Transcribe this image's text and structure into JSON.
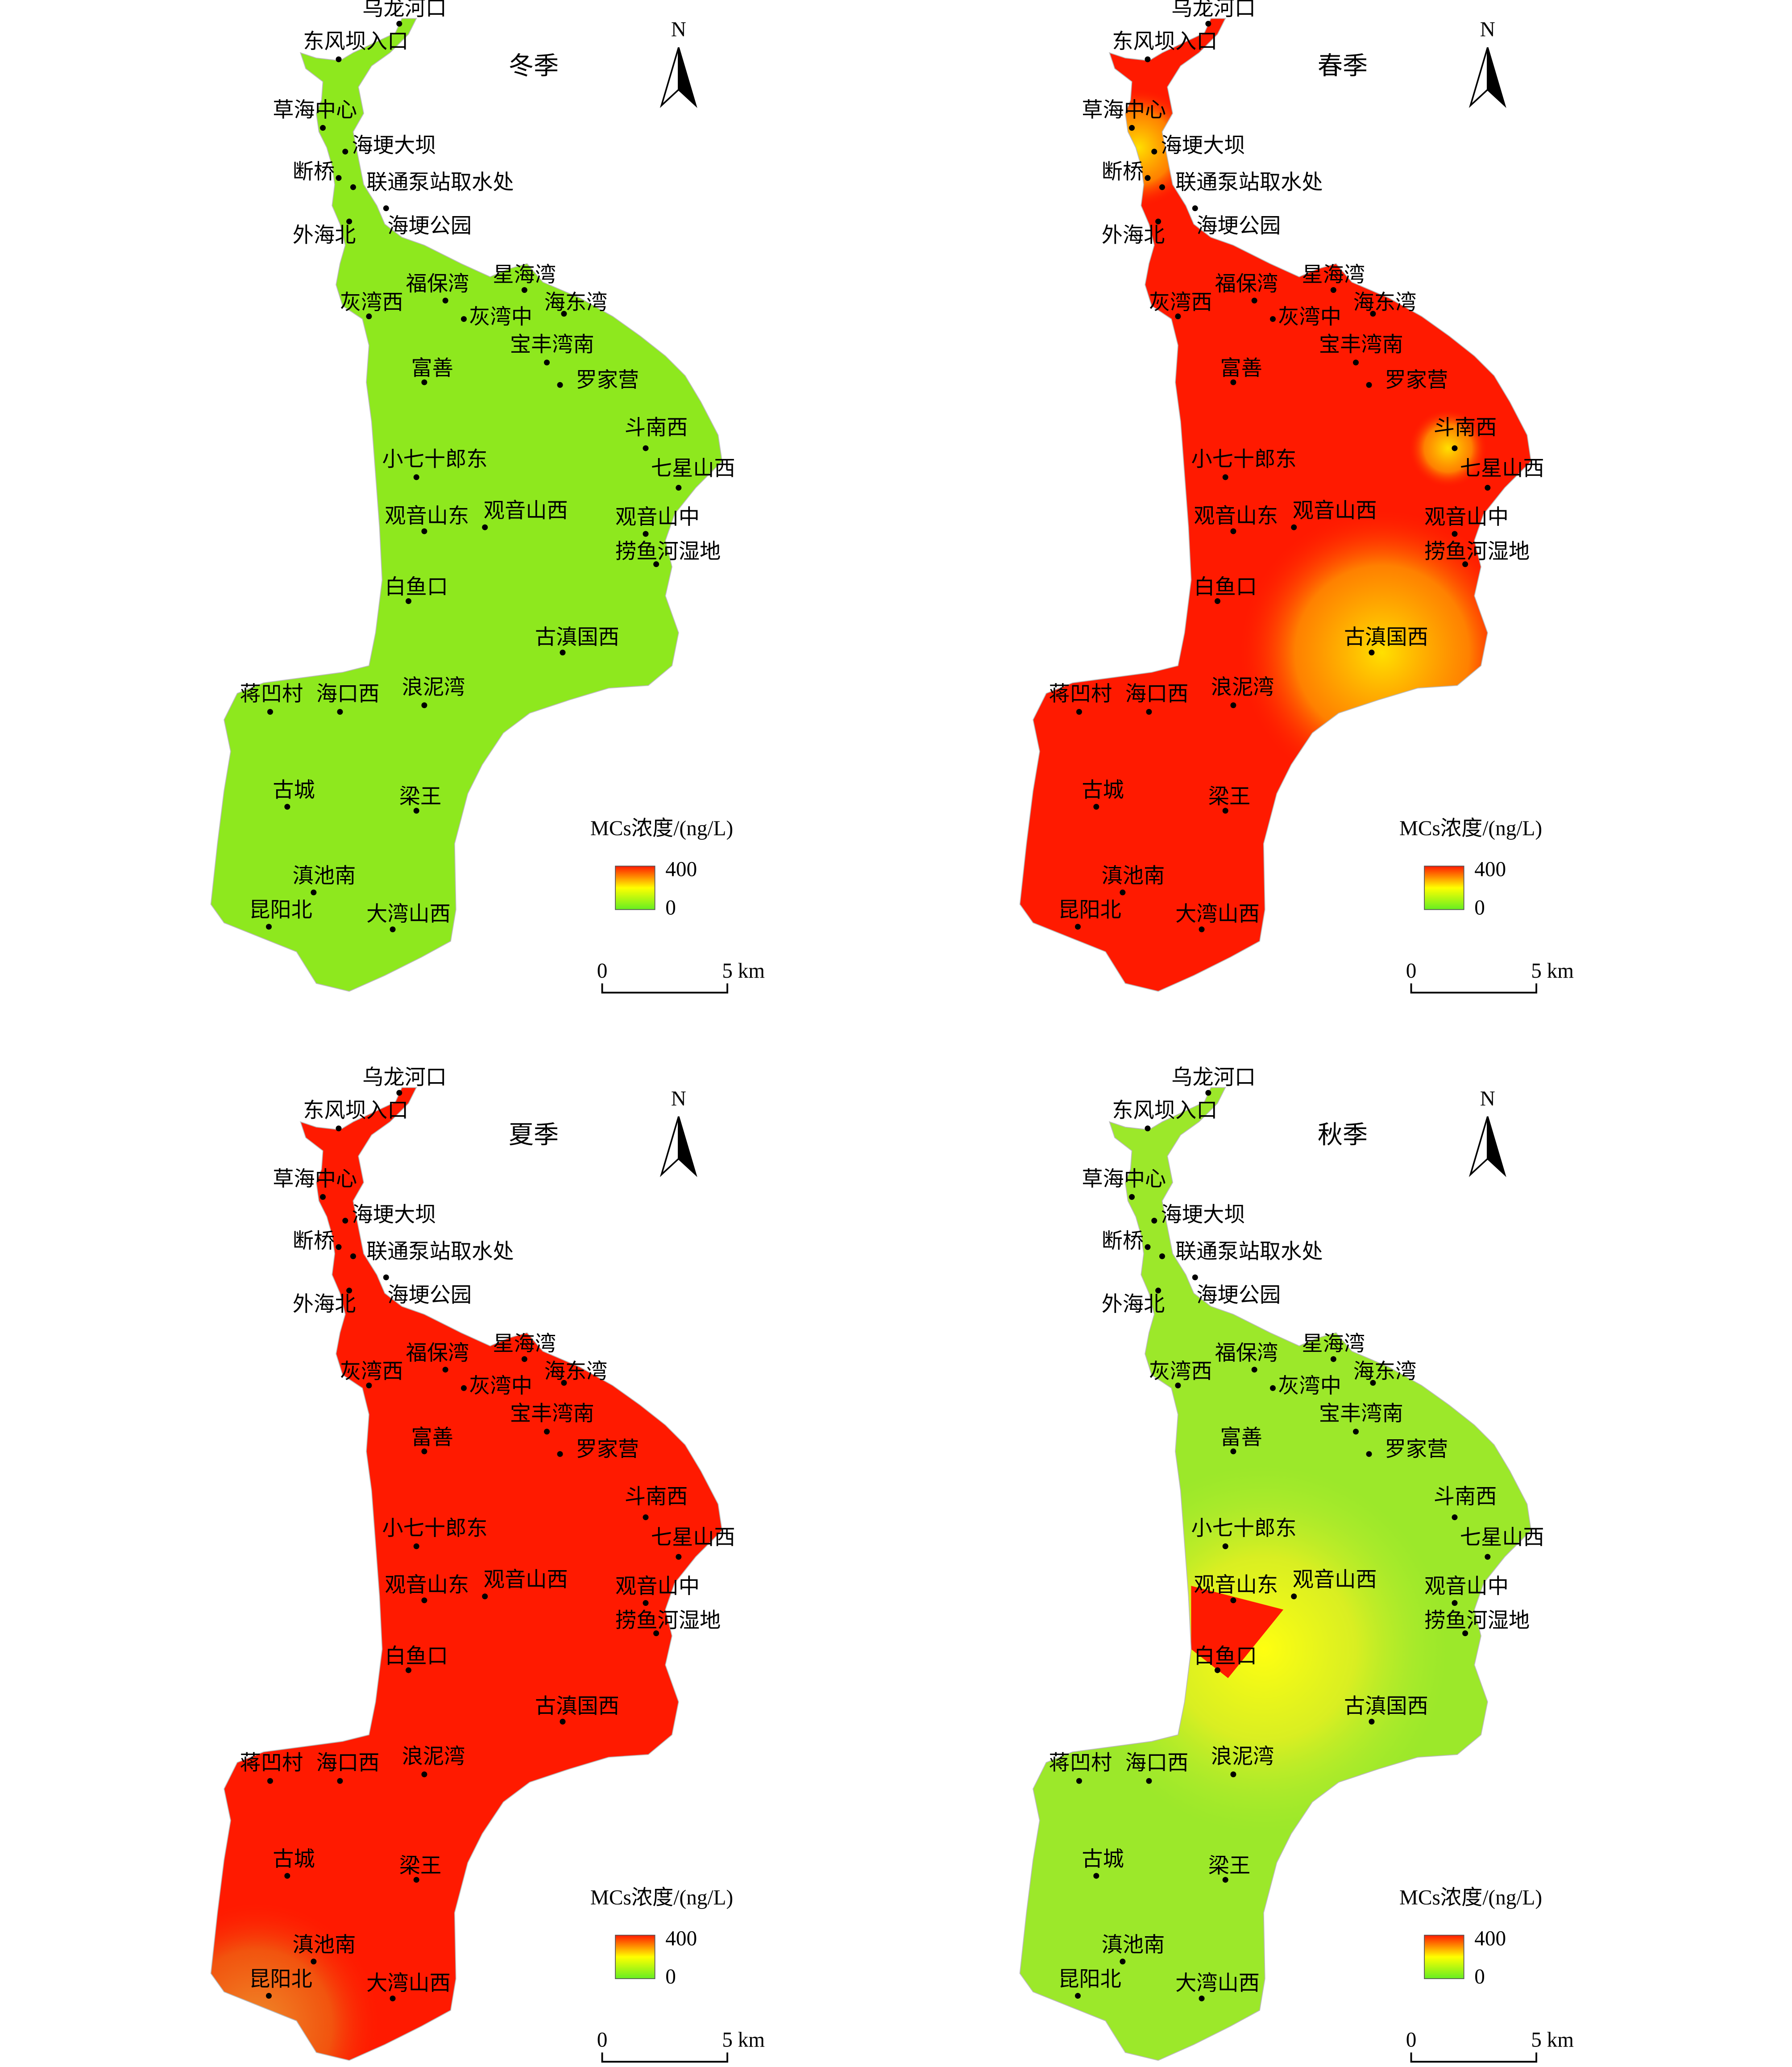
{
  "panels": [
    {
      "season": "冬季",
      "color": "#8ee81e"
    },
    {
      "season": "春季",
      "color": "#ff1a00"
    },
    {
      "season": "夏季",
      "color": "#ff1a00"
    },
    {
      "season": "秋季",
      "color": "#9ce82a"
    }
  ],
  "stations": [
    "乌龙河口",
    "东风坝入口",
    "草海中心",
    "海埂大坝",
    "断桥",
    "联通泵站取水处",
    "外海北",
    "海埂公园",
    "福保湾",
    "星海湾",
    "灰湾西",
    "灰湾中",
    "海东湾",
    "宝丰湾南",
    "富善",
    "罗家营",
    "斗南西",
    "小七十郎东",
    "七星山西",
    "观音山东",
    "观音山西",
    "观音山中",
    "捞鱼河湿地",
    "白鱼口",
    "古滇国西",
    "浪泥湾",
    "蒋凹村",
    "海口西",
    "古城",
    "梁王",
    "滇池南",
    "昆阳北",
    "大湾山西"
  ],
  "north": "N",
  "legend": {
    "title": "MCs浓度/(ng/L)",
    "max": 400,
    "min": 0
  },
  "scale": {
    "start": "0",
    "end": "5 km"
  }
}
